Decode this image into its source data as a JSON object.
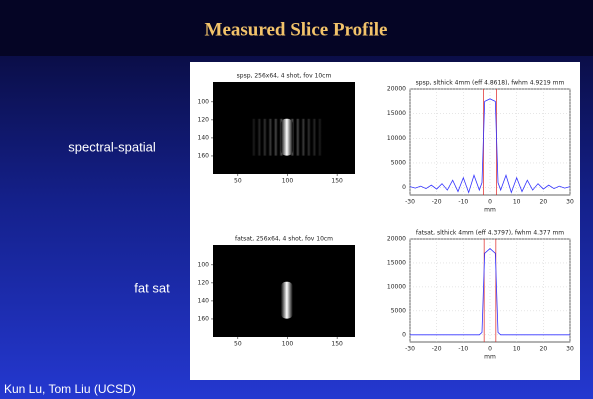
{
  "title": "Measured Slice Profile",
  "labels": [
    "spectral-spatial",
    "fat sat"
  ],
  "footer": "Kun Lu, Tom Liu (UCSD)",
  "chart_data": [
    {
      "type": "image",
      "title": "spsp, 256x64, 4 shot, fov 10cm",
      "xlim": [
        25,
        168
      ],
      "ylim": [
        78,
        180
      ],
      "xticks": [
        50,
        100,
        150
      ],
      "yticks": [
        100,
        120,
        140,
        160
      ],
      "stripes": true
    },
    {
      "type": "line",
      "title": "spsp, slthick 4mm (eff 4.8618), fwhm 4.9219 mm",
      "xlabel": "mm",
      "xlim": [
        -30,
        30
      ],
      "ylim": [
        -1500,
        20000
      ],
      "xticks": [
        -30,
        -20,
        -10,
        0,
        10,
        20,
        30
      ],
      "yticks": [
        0,
        5000,
        10000,
        15000,
        20000
      ],
      "grid": true,
      "x": [
        -30,
        -28,
        -26,
        -24,
        -22,
        -20,
        -18,
        -16,
        -14,
        -12,
        -10,
        -8,
        -6,
        -4,
        -3,
        -2,
        0,
        2,
        3,
        4,
        6,
        8,
        10,
        12,
        14,
        16,
        18,
        20,
        22,
        24,
        26,
        28,
        30
      ],
      "series": [
        {
          "color": "#3333ff",
          "values": [
            200,
            -100,
            300,
            -200,
            500,
            -300,
            800,
            -500,
            1500,
            -800,
            2000,
            -1000,
            2500,
            -500,
            1000,
            17500,
            18000,
            17500,
            1000,
            -500,
            2500,
            -1000,
            2000,
            -800,
            1500,
            -500,
            800,
            -300,
            500,
            -200,
            300,
            -100,
            200
          ]
        }
      ],
      "vlines": {
        "color": "#dd2222",
        "values": [
          -2.43,
          2.43
        ]
      }
    },
    {
      "type": "image",
      "title": "fatsat, 256x64, 4 shot, fov 10cm",
      "xlim": [
        25,
        168
      ],
      "ylim": [
        78,
        180
      ],
      "xticks": [
        50,
        100,
        150
      ],
      "yticks": [
        100,
        120,
        140,
        160
      ],
      "stripes": false
    },
    {
      "type": "line",
      "title": "fatsat, slthick 4mm (eff 4.3797), fwhm 4.377 mm",
      "xlabel": "mm",
      "xlim": [
        -30,
        30
      ],
      "ylim": [
        -1500,
        20000
      ],
      "xticks": [
        -30,
        -20,
        -10,
        0,
        10,
        20,
        30
      ],
      "yticks": [
        0,
        5000,
        10000,
        15000,
        20000
      ],
      "grid": true,
      "x": [
        -30,
        -20,
        -10,
        -4,
        -3,
        -2,
        0,
        2,
        3,
        4,
        10,
        20,
        30
      ],
      "series": [
        {
          "color": "#3333ff",
          "values": [
            0,
            0,
            0,
            0,
            500,
            17000,
            18000,
            17000,
            500,
            0,
            0,
            0,
            0
          ]
        }
      ],
      "vlines": {
        "color": "#dd2222",
        "values": [
          -2.19,
          2.19
        ]
      }
    }
  ]
}
